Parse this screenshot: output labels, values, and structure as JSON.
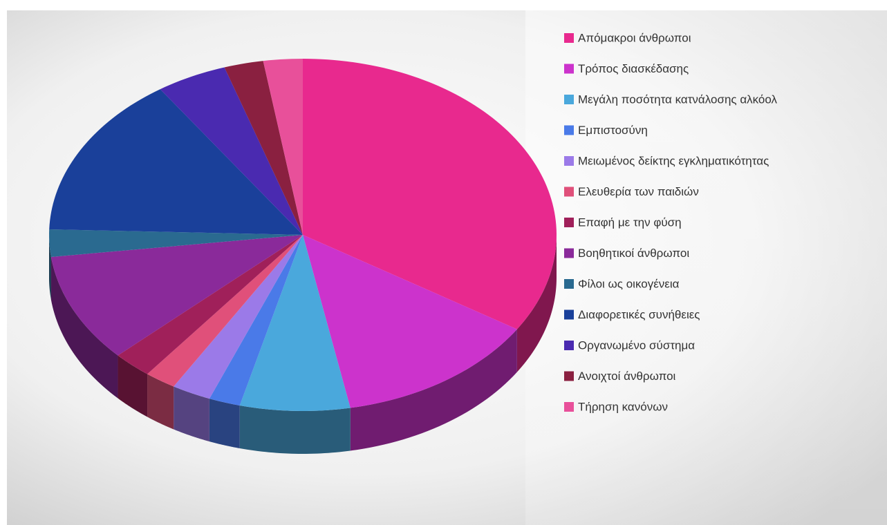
{
  "chart_data": {
    "type": "pie",
    "categories": [
      "Απόμακροι άνθρωποι",
      "Τρόπος διασκέδασης",
      "Μεγάλη ποσότητα κατνάλοσης αλκόολ",
      "Εμπιστοσύνη",
      "Μειωμένος δείκτης εγκληματικότητας",
      "Ελευθερία των παιδιών",
      "Επαφή με την φύση",
      "Βοηθητικοί άνθρωποι",
      "Φίλοι ως οικογένεια",
      "Διαφορετικές συνήθειες",
      "Οργανωμένο σύστημα",
      "Ανοιχτοί άνθρωποι",
      "Τήρηση κανόνων"
    ],
    "values": [
      34,
      13,
      7,
      2,
      2.5,
      2,
      2.5,
      10,
      2.5,
      15,
      4.5,
      2.5,
      2.5
    ],
    "colors": [
      "#e8298e",
      "#cc33cc",
      "#4aa8dc",
      "#4a7ae8",
      "#9b7ae8",
      "#e0507a",
      "#a0205a",
      "#8a2a9a",
      "#2a6a90",
      "#1a409a",
      "#4a2ab0",
      "#8a2040",
      "#e8509a"
    ],
    "legend": "right"
  }
}
